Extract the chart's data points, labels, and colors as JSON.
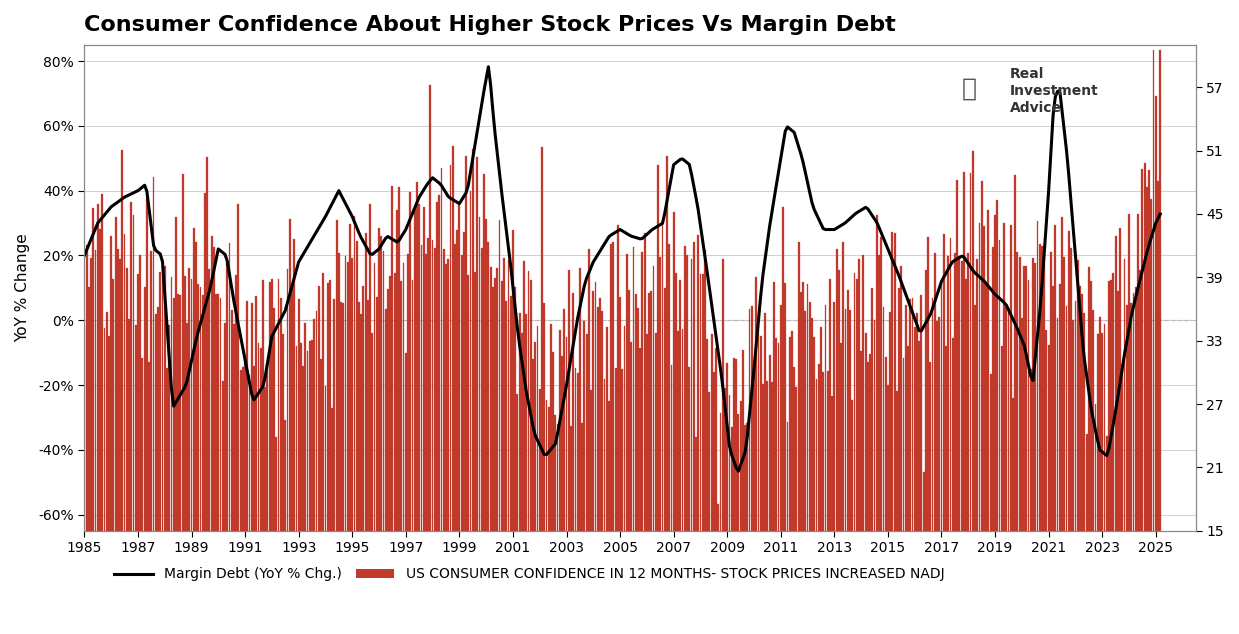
{
  "title": "Consumer Confidence About Higher Stock Prices Vs Margin Debt",
  "ylabel_left": "YoY % Change",
  "legend_line": "Margin Debt (YoY % Chg.)",
  "legend_bar": "US CONSUMER CONFIDENCE IN 12 MONTHS- STOCK PRICES INCREASED NADJ",
  "ylim_left": [
    -0.65,
    0.85
  ],
  "ylim_right": [
    15,
    61
  ],
  "yticks_left": [
    -0.6,
    -0.4,
    -0.2,
    0.0,
    0.2,
    0.4,
    0.6,
    0.8
  ],
  "ytick_labels_left": [
    "-60%",
    "-40%",
    "-20%",
    "0%",
    "20%",
    "40%",
    "60%",
    "80%"
  ],
  "yticks_right": [
    15,
    21,
    27,
    33,
    39,
    45,
    51,
    57
  ],
  "xlim": [
    1985.0,
    2026.5
  ],
  "xticks": [
    1985,
    1987,
    1989,
    1991,
    1993,
    1995,
    1997,
    1999,
    2001,
    2003,
    2005,
    2007,
    2009,
    2011,
    2013,
    2015,
    2017,
    2019,
    2021,
    2023,
    2025
  ],
  "background_color": "#ffffff",
  "bar_color": "#c0392b",
  "line_color": "#000000",
  "line_width": 2.2,
  "grid_color": "#d0d0d0",
  "title_fontsize": 16,
  "tick_fontsize": 10,
  "legend_fontsize": 10,
  "margin_debt_points": [
    [
      1985.0,
      0.2
    ],
    [
      1985.5,
      0.3
    ],
    [
      1986.0,
      0.35
    ],
    [
      1986.5,
      0.38
    ],
    [
      1987.0,
      0.4
    ],
    [
      1987.3,
      0.42
    ],
    [
      1987.6,
      0.22
    ],
    [
      1987.9,
      0.2
    ],
    [
      1988.3,
      -0.27
    ],
    [
      1988.8,
      -0.2
    ],
    [
      1989.2,
      -0.05
    ],
    [
      1989.7,
      0.1
    ],
    [
      1990.0,
      0.22
    ],
    [
      1990.3,
      0.2
    ],
    [
      1990.6,
      0.05
    ],
    [
      1990.9,
      -0.08
    ],
    [
      1991.3,
      -0.25
    ],
    [
      1991.7,
      -0.2
    ],
    [
      1992.0,
      -0.05
    ],
    [
      1992.5,
      0.03
    ],
    [
      1993.0,
      0.18
    ],
    [
      1993.5,
      0.25
    ],
    [
      1994.0,
      0.32
    ],
    [
      1994.5,
      0.4
    ],
    [
      1995.0,
      0.32
    ],
    [
      1995.3,
      0.26
    ],
    [
      1995.7,
      0.2
    ],
    [
      1996.0,
      0.22
    ],
    [
      1996.3,
      0.26
    ],
    [
      1996.7,
      0.24
    ],
    [
      1997.0,
      0.28
    ],
    [
      1997.5,
      0.38
    ],
    [
      1997.8,
      0.42
    ],
    [
      1998.0,
      0.44
    ],
    [
      1998.3,
      0.42
    ],
    [
      1998.6,
      0.38
    ],
    [
      1999.0,
      0.36
    ],
    [
      1999.3,
      0.4
    ],
    [
      1999.6,
      0.55
    ],
    [
      1999.9,
      0.7
    ],
    [
      2000.1,
      0.79
    ],
    [
      2000.3,
      0.6
    ],
    [
      2000.6,
      0.38
    ],
    [
      2000.9,
      0.18
    ],
    [
      2001.2,
      -0.05
    ],
    [
      2001.5,
      -0.22
    ],
    [
      2001.8,
      -0.35
    ],
    [
      2002.2,
      -0.42
    ],
    [
      2002.6,
      -0.38
    ],
    [
      2003.0,
      -0.2
    ],
    [
      2003.4,
      0.0
    ],
    [
      2003.7,
      0.12
    ],
    [
      2004.0,
      0.18
    ],
    [
      2004.3,
      0.22
    ],
    [
      2004.6,
      0.26
    ],
    [
      2005.0,
      0.28
    ],
    [
      2005.4,
      0.26
    ],
    [
      2005.8,
      0.25
    ],
    [
      2006.2,
      0.28
    ],
    [
      2006.6,
      0.3
    ],
    [
      2007.0,
      0.48
    ],
    [
      2007.3,
      0.5
    ],
    [
      2007.6,
      0.48
    ],
    [
      2007.9,
      0.35
    ],
    [
      2008.2,
      0.18
    ],
    [
      2008.5,
      0.0
    ],
    [
      2008.8,
      -0.18
    ],
    [
      2009.1,
      -0.4
    ],
    [
      2009.4,
      -0.47
    ],
    [
      2009.7,
      -0.4
    ],
    [
      2010.0,
      -0.15
    ],
    [
      2010.3,
      0.12
    ],
    [
      2010.6,
      0.3
    ],
    [
      2010.9,
      0.45
    ],
    [
      2011.2,
      0.6
    ],
    [
      2011.5,
      0.58
    ],
    [
      2011.8,
      0.5
    ],
    [
      2012.2,
      0.35
    ],
    [
      2012.6,
      0.28
    ],
    [
      2013.0,
      0.28
    ],
    [
      2013.4,
      0.3
    ],
    [
      2013.8,
      0.33
    ],
    [
      2014.2,
      0.35
    ],
    [
      2014.6,
      0.3
    ],
    [
      2015.0,
      0.22
    ],
    [
      2015.4,
      0.14
    ],
    [
      2015.8,
      0.05
    ],
    [
      2016.2,
      -0.04
    ],
    [
      2016.6,
      0.02
    ],
    [
      2017.0,
      0.12
    ],
    [
      2017.4,
      0.18
    ],
    [
      2017.8,
      0.2
    ],
    [
      2018.2,
      0.15
    ],
    [
      2018.6,
      0.12
    ],
    [
      2019.0,
      0.08
    ],
    [
      2019.4,
      0.05
    ],
    [
      2019.8,
      -0.02
    ],
    [
      2020.1,
      -0.08
    ],
    [
      2020.4,
      -0.2
    ],
    [
      2020.7,
      0.05
    ],
    [
      2021.0,
      0.4
    ],
    [
      2021.2,
      0.68
    ],
    [
      2021.4,
      0.72
    ],
    [
      2021.7,
      0.5
    ],
    [
      2022.0,
      0.2
    ],
    [
      2022.3,
      -0.1
    ],
    [
      2022.6,
      -0.28
    ],
    [
      2022.9,
      -0.4
    ],
    [
      2023.2,
      -0.42
    ],
    [
      2023.5,
      -0.28
    ],
    [
      2023.8,
      -0.12
    ],
    [
      2024.1,
      0.02
    ],
    [
      2024.4,
      0.12
    ],
    [
      2024.7,
      0.22
    ],
    [
      2025.0,
      0.3
    ],
    [
      2025.3,
      0.35
    ]
  ],
  "conf_base_points": [
    [
      1985.0,
      36
    ],
    [
      1986.0,
      38
    ],
    [
      1987.0,
      38
    ],
    [
      1988.0,
      36
    ],
    [
      1989.0,
      38
    ],
    [
      1990.0,
      38
    ],
    [
      1991.0,
      32
    ],
    [
      1992.0,
      33
    ],
    [
      1993.0,
      34
    ],
    [
      1994.0,
      36
    ],
    [
      1995.0,
      38
    ],
    [
      1996.0,
      40
    ],
    [
      1997.0,
      41
    ],
    [
      1998.0,
      43
    ],
    [
      1999.0,
      44
    ],
    [
      2000.0,
      42
    ],
    [
      2001.0,
      35
    ],
    [
      2002.0,
      32
    ],
    [
      2003.0,
      32
    ],
    [
      2004.0,
      34
    ],
    [
      2005.0,
      36
    ],
    [
      2006.0,
      37
    ],
    [
      2007.0,
      38
    ],
    [
      2008.0,
      34
    ],
    [
      2009.0,
      24
    ],
    [
      2010.0,
      29
    ],
    [
      2011.0,
      31
    ],
    [
      2012.0,
      32
    ],
    [
      2013.0,
      33
    ],
    [
      2014.0,
      35
    ],
    [
      2015.0,
      35
    ],
    [
      2016.0,
      34
    ],
    [
      2017.0,
      37
    ],
    [
      2018.0,
      40
    ],
    [
      2019.0,
      39
    ],
    [
      2020.0,
      34
    ],
    [
      2021.0,
      40
    ],
    [
      2022.0,
      38
    ],
    [
      2023.0,
      33
    ],
    [
      2024.0,
      36
    ],
    [
      2025.0,
      50
    ],
    [
      2025.3,
      57
    ]
  ]
}
